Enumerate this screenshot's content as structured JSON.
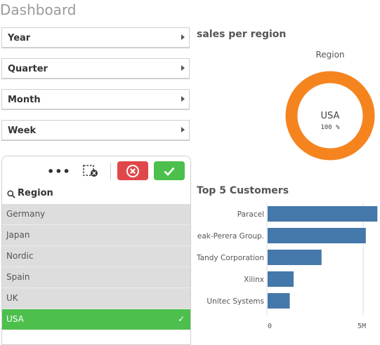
{
  "page": {
    "title": "Dashboard"
  },
  "filters": [
    {
      "label": "Year"
    },
    {
      "label": "Quarter"
    },
    {
      "label": "Month"
    },
    {
      "label": "Week"
    }
  ],
  "listbox": {
    "more_label": "•••",
    "search_label": "Region",
    "items": [
      {
        "label": "Germany",
        "selected": false
      },
      {
        "label": "Japan",
        "selected": false
      },
      {
        "label": "Nordic",
        "selected": false
      },
      {
        "label": "Spain",
        "selected": false
      },
      {
        "label": "UK",
        "selected": false
      },
      {
        "label": "USA",
        "selected": true,
        "tick": "✓"
      }
    ],
    "colors": {
      "cancel": "#e0474b",
      "confirm": "#4cbf4c",
      "selected": "#4cbf4c",
      "unselected": "#dddddd"
    }
  },
  "sales_region": {
    "title": "sales per region",
    "chart_data": {
      "type": "pie",
      "title": "Region",
      "slices": [
        {
          "label": "USA",
          "value": 100,
          "display": "100 %"
        }
      ],
      "color": "#f5841f"
    }
  },
  "top_customers": {
    "title": "Top 5 Customers",
    "chart_data": {
      "type": "bar",
      "orientation": "horizontal",
      "categories": [
        "Paracel",
        "Deak-Perera Group.",
        "Tandy Corporation",
        "Xilinx",
        "Unitec Systems"
      ],
      "values": [
        5700000,
        5100000,
        2800000,
        1350000,
        1150000
      ],
      "xlim": [
        0,
        5800000
      ],
      "ticks": [
        {
          "value": 0,
          "label": "0"
        },
        {
          "value": 5000000,
          "label": "5M"
        }
      ],
      "color": "#4477aa"
    }
  }
}
